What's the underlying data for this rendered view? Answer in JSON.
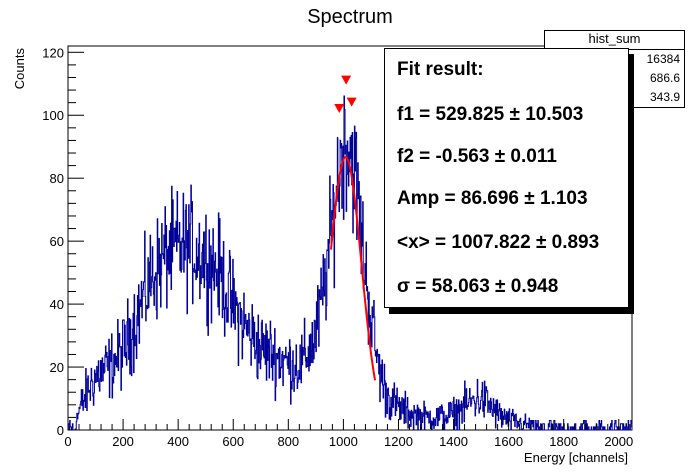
{
  "chart_data": {
    "type": "histogram",
    "title": "Spectrum",
    "xlabel": "Energy [channels]",
    "ylabel": "Counts",
    "xlim": [
      0,
      2048
    ],
    "ylim": [
      0,
      122
    ],
    "xticks": [
      0,
      200,
      400,
      600,
      800,
      1000,
      1200,
      1400,
      1600,
      1800,
      2000
    ],
    "yticks": [
      0,
      20,
      40,
      60,
      80,
      100,
      120
    ],
    "histogram_color": "#000099",
    "envelope": {
      "x": [
        0,
        25,
        40,
        60,
        80,
        100,
        150,
        200,
        250,
        300,
        350,
        400,
        450,
        500,
        550,
        600,
        650,
        700,
        750,
        800,
        850,
        900,
        930,
        960,
        980,
        1000,
        1010,
        1030,
        1050,
        1070,
        1100,
        1130,
        1160,
        1200,
        1250,
        1300,
        1350,
        1400,
        1450,
        1480,
        1500,
        1530,
        1560,
        1600,
        1650,
        1700,
        1800,
        1900,
        2000,
        2048
      ],
      "y": [
        0,
        1,
        6,
        10,
        14,
        17,
        20,
        25,
        36,
        48,
        55,
        58,
        58,
        55,
        50,
        39,
        32,
        26,
        24,
        21,
        21,
        30,
        45,
        65,
        80,
        90,
        92,
        88,
        76,
        58,
        36,
        19,
        11,
        7,
        5,
        4,
        4,
        5,
        8,
        10,
        10,
        8,
        5,
        3,
        2,
        1,
        1,
        1,
        1,
        0
      ]
    },
    "fit": {
      "color": "#ff0000",
      "mean": 1007.822,
      "sigma": 58.063,
      "amp": 86.696,
      "range": [
        955,
        1115
      ]
    },
    "peak_markers": [
      {
        "x": 985,
        "y": 102
      },
      {
        "x": 1010,
        "y": 111
      },
      {
        "x": 1030,
        "y": 104
      }
    ],
    "stats_box": {
      "title": "hist_sum",
      "rows": [
        "16384",
        "686.6",
        "343.9"
      ]
    },
    "fit_result": {
      "title": "Fit result:",
      "lines": [
        "f1 = 529.825 ± 10.503",
        "f2 = -0.563 ± 0.011",
        "Amp = 86.696 ± 1.103",
        "<x> = 1007.822 ± 0.893",
        "σ = 58.063 ± 0.948"
      ]
    }
  }
}
